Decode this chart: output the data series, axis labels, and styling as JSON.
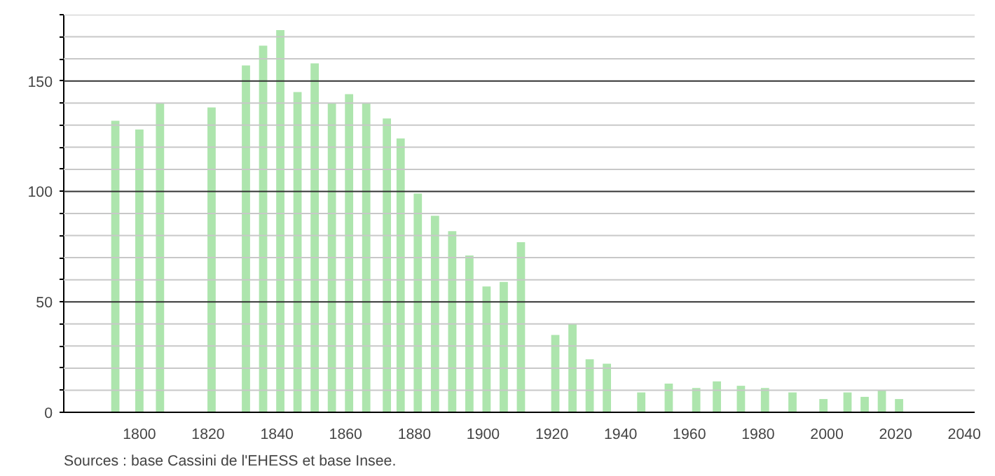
{
  "chart_data": {
    "type": "bar",
    "color": "#ade5ad",
    "x": [
      1793,
      1800,
      1806,
      1821,
      1831,
      1836,
      1841,
      1846,
      1851,
      1856,
      1861,
      1866,
      1872,
      1876,
      1881,
      1886,
      1891,
      1896,
      1901,
      1906,
      1911,
      1921,
      1926,
      1931,
      1936,
      1946,
      1954,
      1962,
      1968,
      1975,
      1982,
      1990,
      1999,
      2006,
      2011,
      2016,
      2021
    ],
    "values": [
      132,
      128,
      140,
      138,
      157,
      166,
      173,
      145,
      158,
      140,
      144,
      140,
      133,
      124,
      99,
      89,
      82,
      71,
      57,
      59,
      77,
      35,
      40,
      24,
      22,
      9,
      13,
      11,
      14,
      12,
      11,
      9,
      6,
      9,
      7,
      10,
      6
    ],
    "xlim": [
      1778,
      2043
    ],
    "xticks": [
      1800,
      1820,
      1840,
      1860,
      1880,
      1900,
      1920,
      1940,
      1960,
      1980,
      2000,
      2020,
      2040
    ],
    "ylim": [
      0,
      180
    ],
    "yticks": [
      0,
      {
        "value": 10,
        "label": null
      },
      {
        "value": 20,
        "label": null
      },
      {
        "value": 30,
        "label": null
      },
      {
        "value": 40,
        "label": null
      },
      50,
      {
        "value": 60,
        "label": null
      },
      {
        "value": 70,
        "label": null
      },
      {
        "value": 80,
        "label": null
      },
      {
        "value": 90,
        "label": null
      },
      100,
      {
        "value": 110,
        "label": null
      },
      {
        "value": 120,
        "label": null
      },
      {
        "value": 130,
        "label": null
      },
      {
        "value": 140,
        "label": null
      },
      150,
      {
        "value": 160,
        "label": null
      },
      {
        "value": 170,
        "label": null
      },
      {
        "value": 180,
        "label": null
      }
    ],
    "grid": "y",
    "annotations": [
      "Sources : base Cassini de l'EHESS et base Insee."
    ]
  }
}
